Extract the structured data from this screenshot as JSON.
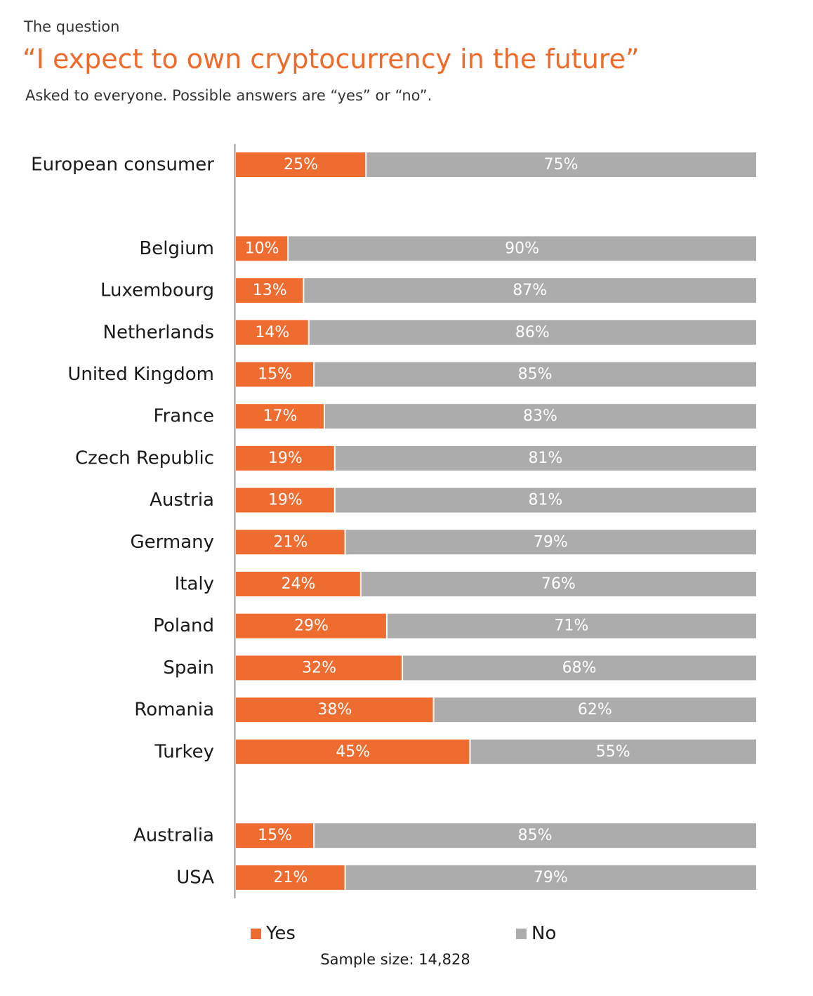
{
  "header": {
    "kicker": "The question",
    "title": "“I expect to own cryptocurrency in the future”",
    "subtitle": "Asked to everyone. Possible answers are “yes” or “no”."
  },
  "colors": {
    "yes": "#ef6c30",
    "no": "#acacac",
    "title": "#f06a2a",
    "axis": "#999999"
  },
  "chart_data": {
    "type": "bar",
    "orientation": "horizontal",
    "stacked": true,
    "percent": true,
    "xlim": [
      0,
      100
    ],
    "grid": false,
    "legend_position": "bottom",
    "series_names": [
      "Yes",
      "No"
    ],
    "groups": [
      {
        "rows": [
          {
            "label": "European consumer",
            "yes": 25,
            "no": 75,
            "yes_label": "25%",
            "no_label": "75%"
          }
        ]
      },
      {
        "rows": [
          {
            "label": "Belgium",
            "yes": 10,
            "no": 90,
            "yes_label": "10%",
            "no_label": "90%"
          },
          {
            "label": "Luxembourg",
            "yes": 13,
            "no": 87,
            "yes_label": "13%",
            "no_label": "87%"
          },
          {
            "label": "Netherlands",
            "yes": 14,
            "no": 86,
            "yes_label": "14%",
            "no_label": "86%"
          },
          {
            "label": "United Kingdom",
            "yes": 15,
            "no": 85,
            "yes_label": "15%",
            "no_label": "85%"
          },
          {
            "label": "France",
            "yes": 17,
            "no": 83,
            "yes_label": "17%",
            "no_label": "83%"
          },
          {
            "label": "Czech Republic",
            "yes": 19,
            "no": 81,
            "yes_label": "19%",
            "no_label": "81%"
          },
          {
            "label": "Austria",
            "yes": 19,
            "no": 81,
            "yes_label": "19%",
            "no_label": "81%"
          },
          {
            "label": "Germany",
            "yes": 21,
            "no": 79,
            "yes_label": "21%",
            "no_label": "79%"
          },
          {
            "label": "Italy",
            "yes": 24,
            "no": 76,
            "yes_label": "24%",
            "no_label": "76%"
          },
          {
            "label": "Poland",
            "yes": 29,
            "no": 71,
            "yes_label": "29%",
            "no_label": "71%"
          },
          {
            "label": "Spain",
            "yes": 32,
            "no": 68,
            "yes_label": "32%",
            "no_label": "68%"
          },
          {
            "label": "Romania",
            "yes": 38,
            "no": 62,
            "yes_label": "38%",
            "no_label": "62%"
          },
          {
            "label": "Turkey",
            "yes": 45,
            "no": 55,
            "yes_label": "45%",
            "no_label": "55%"
          }
        ]
      },
      {
        "rows": [
          {
            "label": "Australia",
            "yes": 15,
            "no": 85,
            "yes_label": "15%",
            "no_label": "85%"
          },
          {
            "label": "USA",
            "yes": 21,
            "no": 79,
            "yes_label": "21%",
            "no_label": "79%"
          }
        ]
      }
    ]
  },
  "legend": {
    "yes_label": "Yes",
    "no_label": "No"
  },
  "footer": {
    "sample_size": "Sample size: 14,828"
  }
}
